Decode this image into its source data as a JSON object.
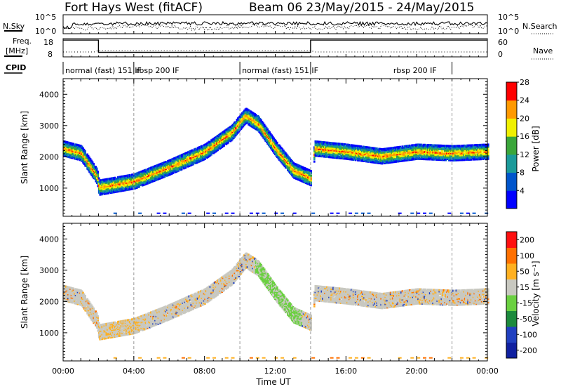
{
  "header": {
    "station": "Fort Hays West (fitACF)",
    "beam_date": "Beam 06 23/May/2015 - 24/May/2015"
  },
  "params": {
    "nsky_label": "N.Sky",
    "nsearch_label": "N.Search",
    "freq_label_1": "Freq.",
    "freq_label_2": "[MHz]",
    "nave_label": "Nave",
    "cpid_label": "CPID",
    "nsky_ticks": [
      "10^5",
      "10^0"
    ],
    "nsearch_ticks": [
      "10^5",
      "10^0"
    ],
    "freq_ticks": [
      "18",
      "8"
    ],
    "nave_ticks": [
      "60",
      "0"
    ],
    "cpid_segments": [
      {
        "label": "normal (fast) 151 IF",
        "start": 0,
        "end": 4
      },
      {
        "label": "rbsp 200 IF",
        "start": 4,
        "end": 10
      },
      {
        "label": "normal (fast) 151 IF",
        "start": 10,
        "end": 14
      },
      {
        "label": "rbsp 200 IF",
        "start": 14,
        "end": 22
      }
    ],
    "freq_series": [
      [
        0,
        17.2
      ],
      [
        2,
        17.2
      ],
      [
        2,
        10.5
      ],
      [
        14,
        10.5
      ],
      [
        14,
        17.2
      ],
      [
        24,
        17.2
      ]
    ]
  },
  "chart_data": [
    {
      "type": "heatmap",
      "title": "",
      "xlabel": "",
      "ylabel": "Slant Range [km]",
      "xlim": [
        0,
        24
      ],
      "ylim": [
        100,
        4500
      ],
      "yticks": [
        "1000",
        "2000",
        "3000",
        "4000"
      ],
      "colorbar_label": "Power [dB]",
      "colorbar_ticks": [
        "4",
        "8",
        "12",
        "16",
        "20",
        "24",
        "28"
      ],
      "colorbar_colors": [
        "#0000ff",
        "#0055cc",
        "#1a9a9a",
        "#3aa63a",
        "#f0f000",
        "#ff9900",
        "#ff0000"
      ],
      "features": [
        {
          "name": "main echo band",
          "points": [
            [
              0,
              2300
            ],
            [
              1,
              2150
            ],
            [
              1.9,
              1400
            ],
            [
              2,
              1050
            ],
            [
              4,
              1250
            ],
            [
              6,
              1700
            ],
            [
              8,
              2200
            ],
            [
              9.5,
              2800
            ],
            [
              10.3,
              3350
            ],
            [
              11,
              3100
            ],
            [
              12,
              2300
            ],
            [
              13,
              1600
            ],
            [
              14,
              1350
            ],
            [
              14.2,
              2300
            ],
            [
              16,
              2200
            ],
            [
              18,
              2050
            ],
            [
              20,
              2200
            ],
            [
              22,
              2150
            ],
            [
              24,
              2200
            ]
          ]
        }
      ]
    },
    {
      "type": "heatmap",
      "title": "",
      "xlabel": "Time UT",
      "ylabel": "Slant Range [km]",
      "xlim": [
        0,
        24
      ],
      "ylim": [
        100,
        4500
      ],
      "xticks": [
        "00:00",
        "04:00",
        "08:00",
        "12:00",
        "16:00",
        "20:00",
        "00:00"
      ],
      "yticks": [
        "1000",
        "2000",
        "3000",
        "4000"
      ],
      "colorbar_label": "Velocity [m s⁻¹]",
      "colorbar_ticks": [
        "200",
        "100",
        "50",
        "15",
        "-15",
        "-50",
        "-100",
        "-200"
      ],
      "colorbar_colors": [
        "#1020a0",
        "#2040c0",
        "#1c8a3c",
        "#6ad040",
        "#c8c8c0",
        "#ffb020",
        "#ff7000",
        "#ff1010"
      ]
    }
  ]
}
